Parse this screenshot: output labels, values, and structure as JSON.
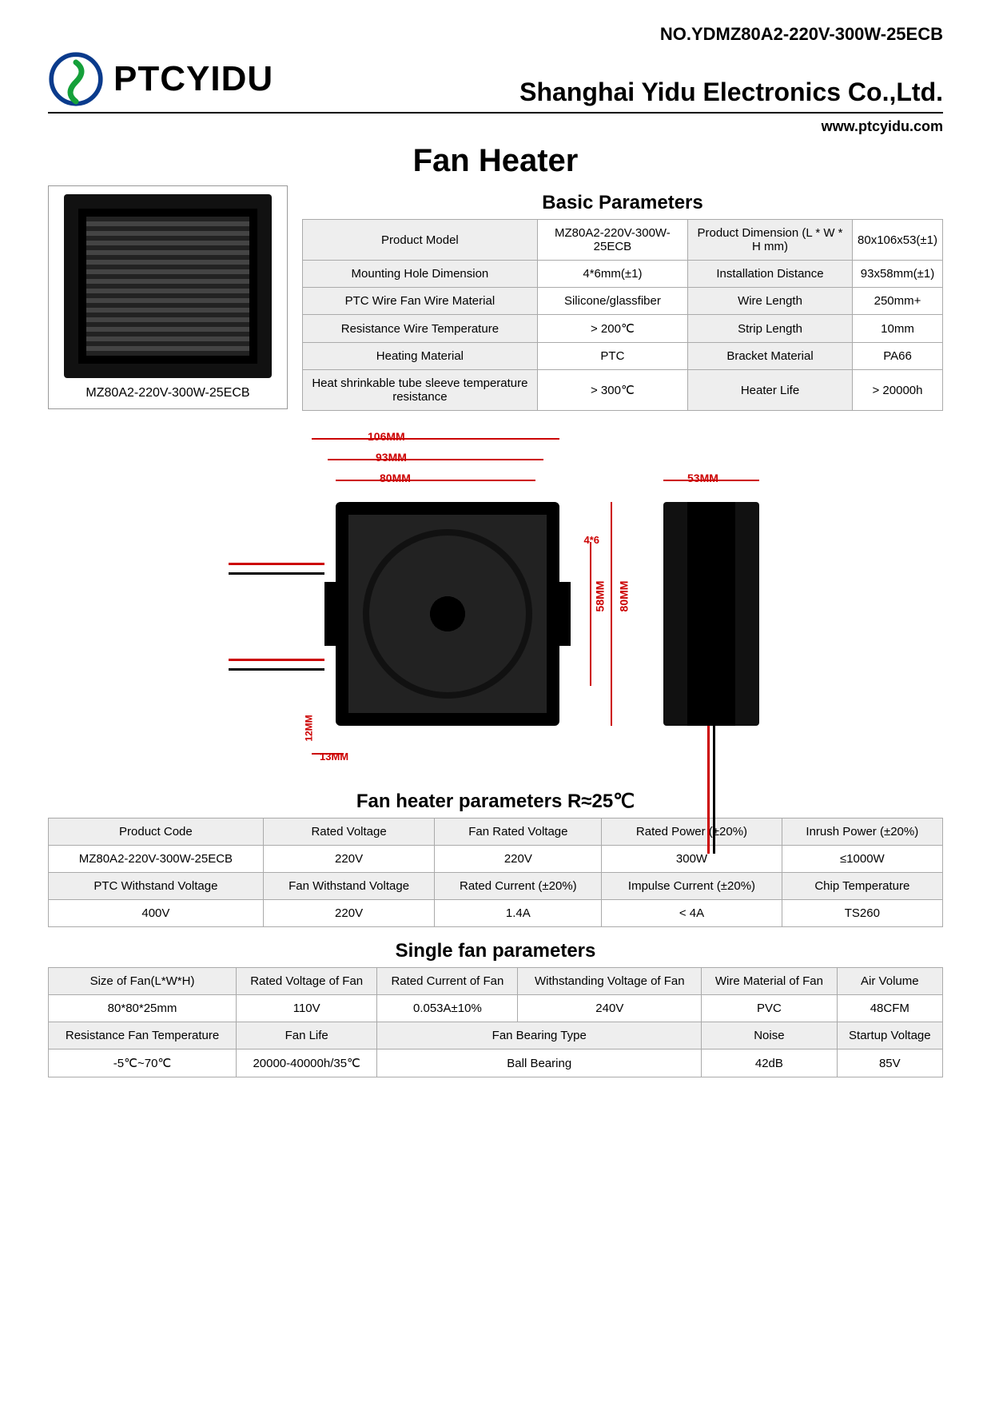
{
  "doc_no": "NO.YDMZ80A2-220V-300W-25ECB",
  "brand": "PTCYIDU",
  "company": "Shanghai Yidu Electronics Co.,Ltd.",
  "website": "www.ptcyidu.com",
  "title": "Fan Heater",
  "photo_caption": "MZ80A2-220V-300W-25ECB",
  "basic_params": {
    "heading": "Basic Parameters",
    "rows": [
      [
        "Product Model",
        "MZ80A2-220V-300W-25ECB",
        "Product Dimension (L * W * H mm)",
        "80x106x53(±1)"
      ],
      [
        "Mounting Hole Dimension",
        "4*6mm(±1)",
        "Installation Distance",
        "93x58mm(±1)"
      ],
      [
        "PTC Wire Fan Wire Material",
        "Silicone/glassfiber",
        "Wire Length",
        "250mm+"
      ],
      [
        "Resistance Wire Temperature",
        "> 200℃",
        "Strip Length",
        "10mm"
      ],
      [
        "Heating Material",
        "PTC",
        "Bracket Material",
        "PA66"
      ],
      [
        "Heat shrinkable tube sleeve temperature resistance",
        "> 300℃",
        "Heater Life",
        "> 20000h"
      ]
    ]
  },
  "diagram": {
    "dims_front": {
      "w106": "106MM",
      "w93": "93MM",
      "w80": "80MM",
      "h80": "80MM",
      "h58": "58MM",
      "hole": "4*6",
      "b12": "12MM",
      "b13": "13MM"
    },
    "dims_side": {
      "w53": "53MM"
    },
    "dim_color": "#cc0000"
  },
  "fan_heater_params": {
    "heading": "Fan heater parameters R≈25℃",
    "row1_h": [
      "Product Code",
      "Rated Voltage",
      "Fan Rated Voltage",
      "Rated Power (±20%)",
      "Inrush Power (±20%)"
    ],
    "row1_v": [
      "MZ80A2-220V-300W-25ECB",
      "220V",
      "220V",
      "300W",
      "≤1000W"
    ],
    "row2_h": [
      "PTC Withstand Voltage",
      "Fan Withstand Voltage",
      "Rated Current (±20%)",
      "Impulse Current (±20%)",
      "Chip Temperature"
    ],
    "row2_v": [
      "400V",
      "220V",
      "1.4A",
      "< 4A",
      "TS260"
    ]
  },
  "single_fan": {
    "heading": "Single fan parameters",
    "row1_h": [
      "Size of Fan(L*W*H)",
      "Rated Voltage of Fan",
      "Rated Current of Fan",
      "Withstanding Voltage of Fan",
      "Wire Material of Fan",
      "Air Volume"
    ],
    "row1_v": [
      "80*80*25mm",
      "110V",
      "0.053A±10%",
      "240V",
      "PVC",
      "48CFM"
    ],
    "row2_h": [
      "Resistance Fan Temperature",
      "Fan Life",
      "Fan Bearing Type",
      "Noise",
      "Startup Voltage"
    ],
    "row2_v": [
      "-5℃~70℃",
      "20000-40000h/35℃",
      "Ball Bearing",
      "42dB",
      "85V"
    ]
  }
}
